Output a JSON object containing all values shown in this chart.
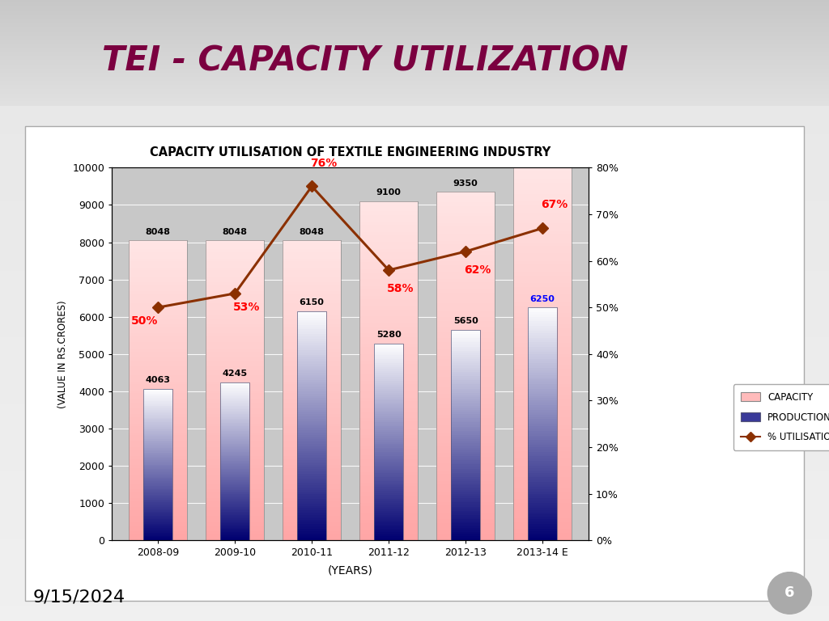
{
  "title": "TEI - CAPACITY UTILIZATION",
  "chart_title": "CAPACITY UTILISATION OF TEXTILE ENGINEERING INDUSTRY",
  "years": [
    "2008-09",
    "2009-10",
    "2010-11",
    "2011-12",
    "2012-13",
    "2013-14 E"
  ],
  "capacity": [
    8048,
    8048,
    8048,
    9100,
    9350,
    10000
  ],
  "production": [
    4063,
    4245,
    6150,
    5280,
    5650,
    6250
  ],
  "utilisation": [
    50,
    53,
    76,
    58,
    62,
    67
  ],
  "utilisation_labels": [
    "50%",
    "53%",
    "76%",
    "58%",
    "62%",
    "67%"
  ],
  "capacity_labels": [
    "8048",
    "8048",
    "8048",
    "9100",
    "9350",
    ""
  ],
  "production_labels": [
    "4063",
    "4245",
    "6150",
    "5280",
    "5650",
    "6250"
  ],
  "production_label_colors": [
    "black",
    "black",
    "black",
    "black",
    "black",
    "blue"
  ],
  "ylabel_left": "(VALUE IN RS.CRORES)",
  "xlabel": "(YEARS)",
  "ylim_left": [
    0,
    10000
  ],
  "ylim_right": [
    0,
    80
  ],
  "yticks_left": [
    0,
    1000,
    2000,
    3000,
    4000,
    5000,
    6000,
    7000,
    8000,
    9000,
    10000
  ],
  "yticks_right": [
    0,
    10,
    20,
    30,
    40,
    50,
    60,
    70,
    80
  ],
  "plot_bg": "#c8c8c8",
  "slide_bg_top": "#d0d0d0",
  "slide_bg_bottom": "#f0f0f0",
  "chart_box_bg": "#ffffff",
  "header_bg": "#c8c8c8",
  "line_color": "#8B3000",
  "title_color": "#7B0040",
  "date_text": "9/15/2024",
  "page_num": "6",
  "util_label_xoffsets": [
    -0.18,
    0.15,
    0.15,
    0.15,
    0.15,
    0.15
  ],
  "util_label_yoffsets": [
    -3,
    -3,
    5,
    -4,
    -4,
    5
  ]
}
